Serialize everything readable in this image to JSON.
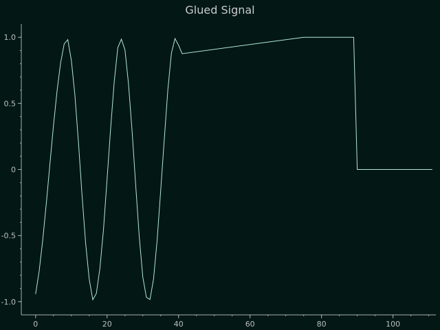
{
  "chart_data": {
    "type": "line",
    "title": "Glued Signal",
    "xlabel": "",
    "ylabel": "",
    "xlim": [
      -4,
      112
    ],
    "ylim": [
      -1.1,
      1.1
    ],
    "x_ticks": [
      0,
      20,
      40,
      60,
      80,
      100
    ],
    "y_ticks": [
      -1.0,
      -0.5,
      0,
      0.5,
      1.0
    ],
    "y_tick_labels": [
      "-1.0",
      "-0.5",
      "0",
      "0.5",
      "1.0"
    ],
    "grid": false,
    "line_color": "#b3ead6",
    "background_color": "#031714",
    "axis_color": "#a6b0ad",
    "series": [
      {
        "x": [
          0,
          1,
          2,
          3,
          4,
          5,
          6,
          7,
          8,
          9,
          10,
          11,
          12,
          13,
          14,
          15,
          16,
          17,
          18,
          19,
          20,
          21,
          22,
          23,
          24,
          25,
          26,
          27,
          28,
          29,
          30,
          31,
          32,
          33,
          34,
          35,
          36,
          37,
          38,
          39,
          40,
          41,
          75,
          89,
          90,
          111
        ],
        "values": [
          -0.943,
          -0.768,
          -0.532,
          -0.255,
          0.04,
          0.332,
          0.594,
          0.807,
          0.95,
          0.982,
          0.826,
          0.561,
          0.201,
          -0.197,
          -0.559,
          -0.83,
          -0.985,
          -0.938,
          -0.746,
          -0.453,
          -0.072,
          0.313,
          0.664,
          0.921,
          0.986,
          0.906,
          0.646,
          0.288,
          -0.115,
          -0.507,
          -0.815,
          -0.967,
          -0.984,
          -0.829,
          -0.537,
          -0.16,
          0.226,
          0.602,
          0.88,
          0.99,
          0.94,
          0.876,
          1.0,
          1.0,
          0.0,
          0.0
        ]
      }
    ]
  }
}
